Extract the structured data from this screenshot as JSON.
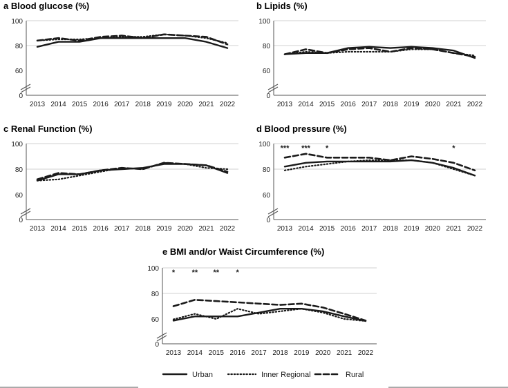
{
  "legend": {
    "series": [
      {
        "name": "Urban",
        "style": "solid"
      },
      {
        "name": "Inner Regional",
        "style": "dotted"
      },
      {
        "name": "Rural",
        "style": "dashed"
      }
    ]
  },
  "colors": {
    "line": "#1a1a1a",
    "axis": "#555555",
    "grid": "#d0d0d0"
  },
  "chart_data": [
    {
      "type": "line",
      "letter": "a",
      "title": "Blood glucose (%)",
      "categories": [
        "2013",
        "2014",
        "2015",
        "2016",
        "2017",
        "2018",
        "2019",
        "2020",
        "2021",
        "2022"
      ],
      "yticks": [
        "0",
        "60",
        "80",
        "100"
      ],
      "ylim": [
        0,
        100
      ],
      "axis_break": [
        0,
        60
      ],
      "series": [
        {
          "name": "Urban",
          "values": [
            79,
            83,
            83,
            86,
            86,
            86,
            86,
            86,
            83,
            78
          ]
        },
        {
          "name": "Inner Regional",
          "values": [
            84,
            85,
            85,
            86,
            87,
            87,
            89,
            88,
            86,
            82
          ]
        },
        {
          "name": "Rural",
          "values": [
            84,
            86,
            84,
            87,
            88,
            86,
            89,
            88,
            87,
            81
          ]
        }
      ],
      "annotations": []
    },
    {
      "type": "line",
      "letter": "b",
      "title": "Lipids (%)",
      "categories": [
        "2013",
        "2014",
        "2015",
        "2016",
        "2017",
        "2018",
        "2019",
        "2020",
        "2021",
        "2022"
      ],
      "yticks": [
        "0",
        "60",
        "80",
        "100"
      ],
      "ylim": [
        0,
        100
      ],
      "axis_break": [
        0,
        60
      ],
      "series": [
        {
          "name": "Urban",
          "values": [
            73,
            74,
            74,
            78,
            79,
            78,
            79,
            78,
            76,
            70
          ]
        },
        {
          "name": "Inner Regional",
          "values": [
            73,
            75,
            74,
            75,
            75,
            75,
            77,
            77,
            74,
            72
          ]
        },
        {
          "name": "Rural",
          "values": [
            73,
            77,
            74,
            77,
            78,
            75,
            78,
            77,
            74,
            71
          ]
        }
      ],
      "annotations": []
    },
    {
      "type": "line",
      "letter": "c",
      "title": "Renal Function (%)",
      "categories": [
        "2013",
        "2014",
        "2015",
        "2016",
        "2017",
        "2018",
        "2019",
        "2020",
        "2021",
        "2022"
      ],
      "yticks": [
        "0",
        "60",
        "80",
        "100"
      ],
      "ylim": [
        0,
        100
      ],
      "axis_break": [
        0,
        60
      ],
      "series": [
        {
          "name": "Urban",
          "values": [
            71,
            76,
            76,
            79,
            80,
            81,
            84,
            84,
            83,
            77
          ]
        },
        {
          "name": "Inner Regional",
          "values": [
            71,
            72,
            75,
            78,
            81,
            80,
            85,
            84,
            81,
            80
          ]
        },
        {
          "name": "Rural",
          "values": [
            72,
            77,
            76,
            79,
            81,
            80,
            85,
            84,
            83,
            78
          ]
        }
      ],
      "annotations": []
    },
    {
      "type": "line",
      "letter": "d",
      "title": "Blood pressure (%)",
      "categories": [
        "2013",
        "2014",
        "2015",
        "2016",
        "2017",
        "2018",
        "2019",
        "2020",
        "2021",
        "2022"
      ],
      "yticks": [
        "0",
        "60",
        "80",
        "100"
      ],
      "ylim": [
        0,
        100
      ],
      "axis_break": [
        0,
        60
      ],
      "series": [
        {
          "name": "Urban",
          "values": [
            82,
            85,
            86,
            86,
            86,
            86,
            87,
            85,
            81,
            75
          ]
        },
        {
          "name": "Inner Regional",
          "values": [
            79,
            82,
            84,
            86,
            87,
            87,
            87,
            85,
            80,
            75
          ]
        },
        {
          "name": "Rural",
          "values": [
            89,
            92,
            89,
            89,
            89,
            87,
            90,
            88,
            85,
            79
          ]
        }
      ],
      "annotations": [
        {
          "index": 0,
          "text": "***"
        },
        {
          "index": 1,
          "text": "***"
        },
        {
          "index": 2,
          "text": "*"
        },
        {
          "index": 8,
          "text": "*"
        }
      ]
    },
    {
      "type": "line",
      "letter": "e",
      "title": "BMI and/or Waist Circumference (%)",
      "categories": [
        "2013",
        "2014",
        "2015",
        "2016",
        "2017",
        "2018",
        "2019",
        "2020",
        "2021",
        "2022"
      ],
      "yticks": [
        "0",
        "60",
        "80",
        "100"
      ],
      "ylim": [
        0,
        100
      ],
      "axis_break": [
        0,
        60
      ],
      "series": [
        {
          "name": "Urban",
          "values": [
            56,
            62,
            62,
            62,
            65,
            68,
            68,
            66,
            62,
            55
          ]
        },
        {
          "name": "Inner Regional",
          "values": [
            59,
            64,
            60,
            68,
            64,
            66,
            68,
            65,
            60,
            55
          ]
        },
        {
          "name": "Rural",
          "values": [
            70,
            75,
            74,
            73,
            72,
            71,
            72,
            69,
            64,
            56
          ]
        }
      ],
      "annotations": [
        {
          "index": 0,
          "text": "*"
        },
        {
          "index": 1,
          "text": "**"
        },
        {
          "index": 2,
          "text": "**"
        },
        {
          "index": 3,
          "text": "*"
        }
      ]
    }
  ]
}
